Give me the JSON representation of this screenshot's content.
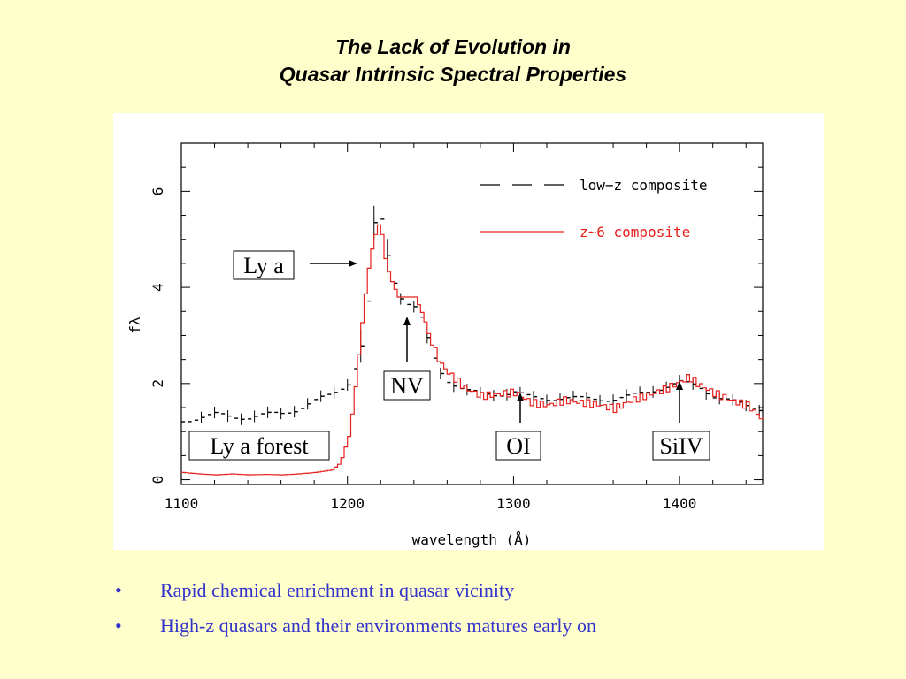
{
  "slide": {
    "title_line1": "The Lack of Evolution in",
    "title_line2": "Quasar Intrinsic Spectral Properties",
    "bullets": [
      "Rapid chemical enrichment in quasar vicinity",
      "High-z quasars and their environments matures early on"
    ],
    "bullet_symbol": "•",
    "colors": {
      "background": "#ffffcc",
      "bullet_text": "#3333cc",
      "z6_series": "#e8201c",
      "lowz_series": "#000000"
    }
  },
  "chart_data": {
    "type": "line",
    "xlabel": "wavelength (Å)",
    "ylabel": "fλ",
    "xlim": [
      1100,
      1450
    ],
    "ylim": [
      -0.1,
      7.0
    ],
    "x_ticks": [
      1100,
      1200,
      1300,
      1400
    ],
    "y_ticks": [
      0,
      2,
      4,
      6
    ],
    "grid": false,
    "legend_position": "top-right",
    "series": [
      {
        "name": "low−z composite",
        "style": "dashed",
        "color": "#000000",
        "x": [
          1100,
          1110,
          1120,
          1130,
          1140,
          1150,
          1160,
          1170,
          1180,
          1190,
          1200,
          1205,
          1210,
          1213,
          1216,
          1218,
          1220,
          1225,
          1230,
          1235,
          1240,
          1245,
          1250,
          1255,
          1260,
          1270,
          1280,
          1290,
          1300,
          1310,
          1320,
          1330,
          1340,
          1350,
          1360,
          1370,
          1380,
          1390,
          1400,
          1410,
          1420,
          1430,
          1440,
          1450
        ],
        "y": [
          1.25,
          1.3,
          1.35,
          1.3,
          1.28,
          1.32,
          1.35,
          1.45,
          1.6,
          1.75,
          2.0,
          2.4,
          3.0,
          4.0,
          5.3,
          5.9,
          5.4,
          4.5,
          3.9,
          3.7,
          3.6,
          3.3,
          2.7,
          2.3,
          2.1,
          1.9,
          1.8,
          1.8,
          1.85,
          1.7,
          1.68,
          1.7,
          1.66,
          1.65,
          1.65,
          1.7,
          1.8,
          1.9,
          2.0,
          1.95,
          1.75,
          1.65,
          1.55,
          1.5
        ]
      },
      {
        "name": "z~6 composite",
        "style": "solid",
        "color": "#e8201c",
        "x": [
          1100,
          1110,
          1120,
          1130,
          1140,
          1150,
          1160,
          1170,
          1180,
          1190,
          1195,
          1200,
          1203,
          1206,
          1209,
          1212,
          1215,
          1218,
          1220,
          1222,
          1225,
          1230,
          1235,
          1240,
          1245,
          1250,
          1255,
          1260,
          1270,
          1280,
          1290,
          1300,
          1310,
          1320,
          1330,
          1340,
          1350,
          1360,
          1370,
          1380,
          1390,
          1400,
          1405,
          1410,
          1420,
          1430,
          1440,
          1450
        ],
        "y": [
          0.15,
          0.12,
          0.1,
          0.12,
          0.1,
          0.11,
          0.1,
          0.12,
          0.15,
          0.2,
          0.35,
          0.9,
          1.6,
          2.6,
          3.6,
          4.4,
          5.0,
          5.3,
          5.1,
          4.6,
          4.2,
          3.8,
          3.8,
          3.8,
          3.4,
          2.8,
          2.4,
          2.2,
          1.9,
          1.75,
          1.8,
          1.85,
          1.65,
          1.6,
          1.7,
          1.65,
          1.6,
          1.5,
          1.65,
          1.75,
          1.85,
          2.0,
          2.1,
          1.95,
          1.75,
          1.6,
          1.5,
          1.2
        ]
      }
    ],
    "annotations": [
      {
        "label": "Ly a",
        "target_x": 1213
      },
      {
        "label": "NV",
        "target_x": 1240
      },
      {
        "label": "OI",
        "target_x": 1305
      },
      {
        "label": "SiIV",
        "target_x": 1400
      },
      {
        "label": "Ly a forest"
      }
    ]
  }
}
